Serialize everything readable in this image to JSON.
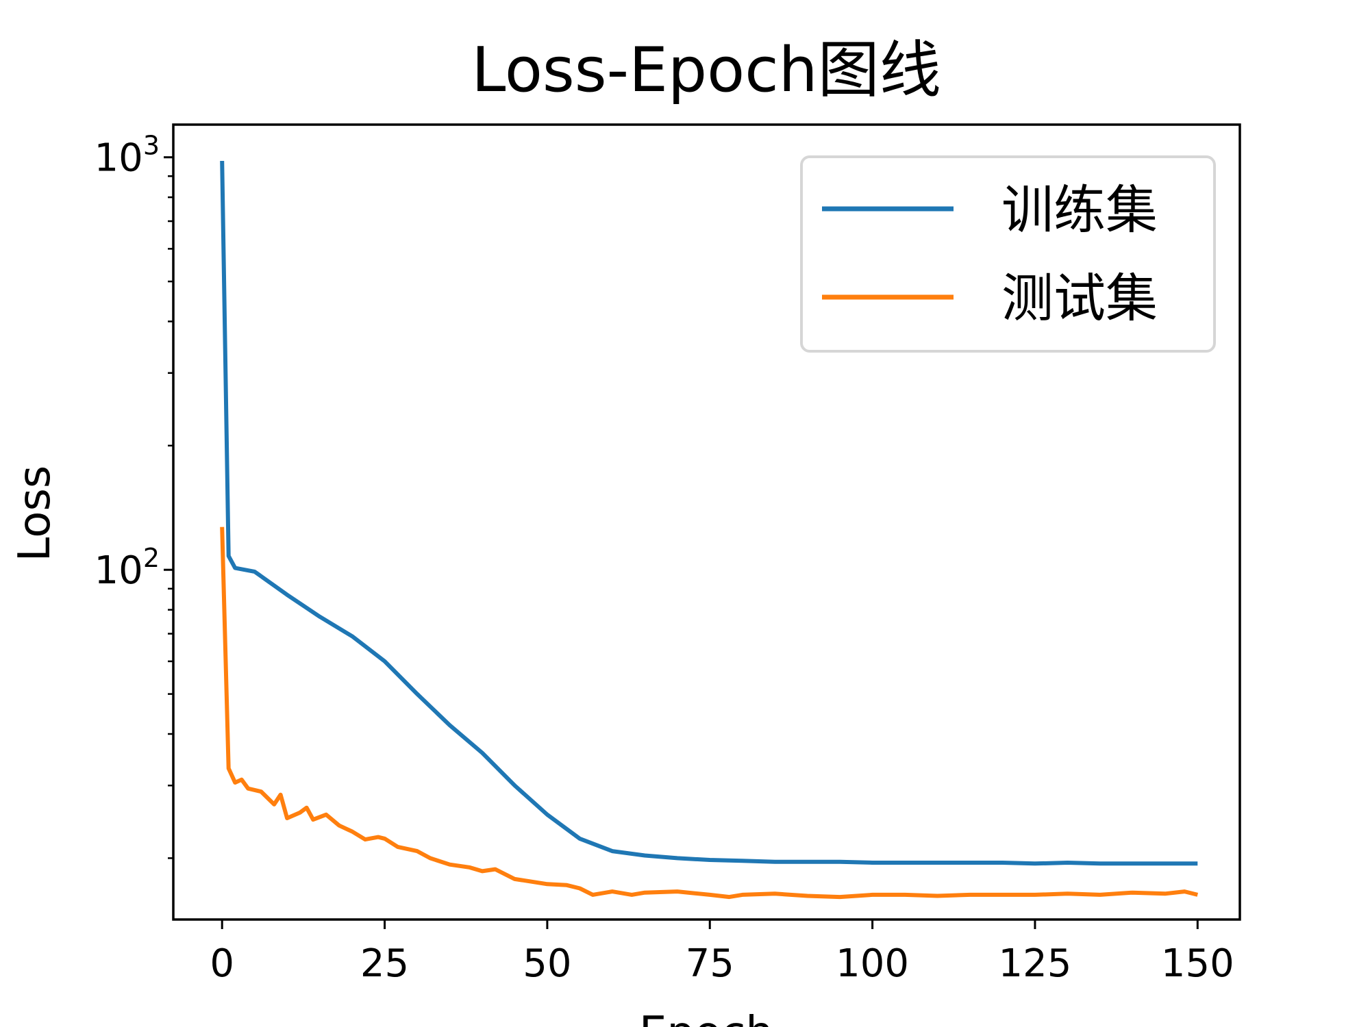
{
  "chart_data": {
    "type": "line",
    "title": "Loss-Epoch图线",
    "xlabel": "Epoch",
    "ylabel": "Loss",
    "yscale": "log",
    "xlim": [
      -7.5,
      156.5
    ],
    "ylim": [
      14.2,
      1200
    ],
    "xticks": [
      "0",
      "25",
      "50",
      "75",
      "100",
      "125",
      "150"
    ],
    "xtick_values": [
      0,
      25,
      50,
      75,
      100,
      125,
      150
    ],
    "yticks": [
      {
        "base": "10",
        "exp": "2",
        "value": 100
      },
      {
        "base": "10",
        "exp": "3",
        "value": 1000
      }
    ],
    "grid": false,
    "legend": {
      "position": "top-right",
      "entries": [
        {
          "label": "训练集",
          "color": "#1f77b4"
        },
        {
          "label": "测试集",
          "color": "#ff7f0e"
        }
      ]
    },
    "series": [
      {
        "name": "训练集",
        "color": "#1f77b4",
        "points": [
          [
            0,
            980
          ],
          [
            1,
            108
          ],
          [
            2,
            101
          ],
          [
            5,
            99
          ],
          [
            10,
            87
          ],
          [
            15,
            77
          ],
          [
            20,
            69
          ],
          [
            25,
            60
          ],
          [
            30,
            50
          ],
          [
            35,
            42
          ],
          [
            40,
            36
          ],
          [
            45,
            30
          ],
          [
            50,
            25.5
          ],
          [
            55,
            22.3
          ],
          [
            60,
            20.8
          ],
          [
            65,
            20.3
          ],
          [
            70,
            20.0
          ],
          [
            75,
            19.8
          ],
          [
            80,
            19.7
          ],
          [
            85,
            19.6
          ],
          [
            90,
            19.6
          ],
          [
            95,
            19.6
          ],
          [
            100,
            19.5
          ],
          [
            105,
            19.5
          ],
          [
            110,
            19.5
          ],
          [
            115,
            19.5
          ],
          [
            120,
            19.5
          ],
          [
            125,
            19.4
          ],
          [
            130,
            19.5
          ],
          [
            135,
            19.4
          ],
          [
            140,
            19.4
          ],
          [
            145,
            19.4
          ],
          [
            150,
            19.4
          ]
        ]
      },
      {
        "name": "测试集",
        "color": "#ff7f0e",
        "points": [
          [
            0,
            127
          ],
          [
            1,
            33
          ],
          [
            2,
            30.5
          ],
          [
            3,
            31
          ],
          [
            4,
            29.5
          ],
          [
            6,
            29
          ],
          [
            8,
            27
          ],
          [
            9,
            28.5
          ],
          [
            10,
            25
          ],
          [
            12,
            25.8
          ],
          [
            13,
            26.5
          ],
          [
            14,
            24.8
          ],
          [
            16,
            25.5
          ],
          [
            18,
            24
          ],
          [
            20,
            23.2
          ],
          [
            22,
            22.2
          ],
          [
            24,
            22.5
          ],
          [
            25,
            22.3
          ],
          [
            27,
            21.3
          ],
          [
            30,
            20.8
          ],
          [
            32,
            20
          ],
          [
            35,
            19.3
          ],
          [
            38,
            19
          ],
          [
            40,
            18.6
          ],
          [
            42,
            18.8
          ],
          [
            45,
            17.8
          ],
          [
            47,
            17.6
          ],
          [
            50,
            17.3
          ],
          [
            53,
            17.2
          ],
          [
            55,
            16.9
          ],
          [
            57,
            16.3
          ],
          [
            60,
            16.6
          ],
          [
            63,
            16.3
          ],
          [
            65,
            16.5
          ],
          [
            70,
            16.6
          ],
          [
            75,
            16.3
          ],
          [
            78,
            16.1
          ],
          [
            80,
            16.3
          ],
          [
            85,
            16.4
          ],
          [
            90,
            16.2
          ],
          [
            95,
            16.1
          ],
          [
            100,
            16.3
          ],
          [
            105,
            16.3
          ],
          [
            110,
            16.2
          ],
          [
            115,
            16.3
          ],
          [
            120,
            16.3
          ],
          [
            125,
            16.3
          ],
          [
            130,
            16.4
          ],
          [
            135,
            16.3
          ],
          [
            140,
            16.5
          ],
          [
            145,
            16.4
          ],
          [
            148,
            16.6
          ],
          [
            150,
            16.3
          ]
        ]
      }
    ]
  }
}
